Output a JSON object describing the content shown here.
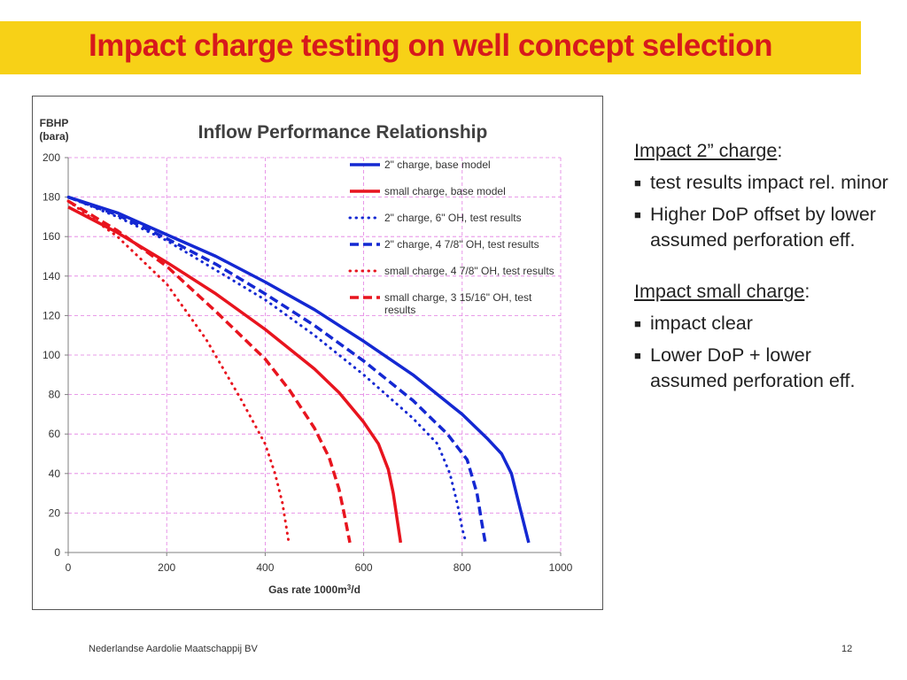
{
  "slide": {
    "title": "Impact charge testing on well concept selection",
    "footer_left": "Nederlandse Aardolie Maatschappij BV",
    "page_number": "12"
  },
  "colors": {
    "title_bar": "#f7d117",
    "title_text": "#d7191c",
    "blue_series": "#1428d2",
    "red_series": "#e8141e",
    "grid": "#e27ce2"
  },
  "bullets": {
    "section1": {
      "heading": "Impact 2” charge",
      "items": [
        "test results impact rel. minor",
        "Higher DoP offset by lower assumed perforation eff."
      ]
    },
    "section2": {
      "heading": "Impact small charge",
      "items": [
        "impact clear",
        "Lower DoP + lower assumed perforation eff."
      ]
    }
  },
  "chart_data": {
    "type": "line",
    "title": "Inflow Performance Relationship",
    "ylabel": "FBHP\n(bara)",
    "xlabel": "Gas rate 1000m3/d",
    "xlim": [
      0,
      1000
    ],
    "ylim": [
      0,
      200
    ],
    "xticks": [
      0,
      200,
      400,
      600,
      800,
      1000
    ],
    "yticks": [
      0,
      20,
      40,
      60,
      80,
      100,
      120,
      140,
      160,
      180,
      200
    ],
    "grid": true,
    "legend_position": "top-right",
    "series": [
      {
        "name": "2\" charge, base model",
        "color": "#1428d2",
        "dash": "solid",
        "points": [
          [
            0,
            180
          ],
          [
            100,
            172
          ],
          [
            200,
            161
          ],
          [
            300,
            150
          ],
          [
            400,
            137
          ],
          [
            500,
            123
          ],
          [
            600,
            107
          ],
          [
            700,
            90
          ],
          [
            800,
            70
          ],
          [
            850,
            58
          ],
          [
            880,
            50
          ],
          [
            900,
            40
          ],
          [
            915,
            25
          ],
          [
            935,
            5
          ]
        ]
      },
      {
        "name": "small charge, base model",
        "color": "#e8141e",
        "dash": "solid",
        "points": [
          [
            0,
            175
          ],
          [
            100,
            162
          ],
          [
            200,
            147
          ],
          [
            300,
            131
          ],
          [
            400,
            113
          ],
          [
            500,
            93
          ],
          [
            550,
            81
          ],
          [
            600,
            66
          ],
          [
            630,
            55
          ],
          [
            650,
            42
          ],
          [
            660,
            30
          ],
          [
            675,
            5
          ]
        ]
      },
      {
        "name": "2\" charge, 6\" OH, test results",
        "color": "#1428d2",
        "dash": "dotted",
        "points": [
          [
            0,
            180
          ],
          [
            100,
            170
          ],
          [
            200,
            158
          ],
          [
            300,
            143
          ],
          [
            400,
            128
          ],
          [
            500,
            110
          ],
          [
            600,
            90
          ],
          [
            700,
            68
          ],
          [
            750,
            55
          ],
          [
            775,
            40
          ],
          [
            790,
            25
          ],
          [
            800,
            12
          ],
          [
            808,
            5
          ]
        ]
      },
      {
        "name": "2\" charge, 4 7/8\" OH, test results",
        "color": "#1428d2",
        "dash": "dashed",
        "points": [
          [
            0,
            180
          ],
          [
            100,
            171
          ],
          [
            200,
            159
          ],
          [
            300,
            146
          ],
          [
            400,
            131
          ],
          [
            500,
            115
          ],
          [
            600,
            97
          ],
          [
            700,
            77
          ],
          [
            770,
            60
          ],
          [
            810,
            47
          ],
          [
            830,
            30
          ],
          [
            840,
            15
          ],
          [
            847,
            5
          ]
        ]
      },
      {
        "name": "small charge, 4 7/8\" OH, test results",
        "color": "#e8141e",
        "dash": "dotted",
        "points": [
          [
            0,
            178
          ],
          [
            100,
            160
          ],
          [
            200,
            136
          ],
          [
            280,
            108
          ],
          [
            350,
            78
          ],
          [
            400,
            55
          ],
          [
            420,
            40
          ],
          [
            435,
            25
          ],
          [
            448,
            5
          ]
        ]
      },
      {
        "name": "small charge, 3 15/16\" OH, test results",
        "color": "#e8141e",
        "dash": "dashed",
        "points": [
          [
            0,
            178
          ],
          [
            100,
            163
          ],
          [
            200,
            145
          ],
          [
            300,
            122
          ],
          [
            400,
            98
          ],
          [
            450,
            82
          ],
          [
            500,
            63
          ],
          [
            530,
            48
          ],
          [
            550,
            32
          ],
          [
            560,
            20
          ],
          [
            572,
            5
          ]
        ]
      }
    ]
  }
}
